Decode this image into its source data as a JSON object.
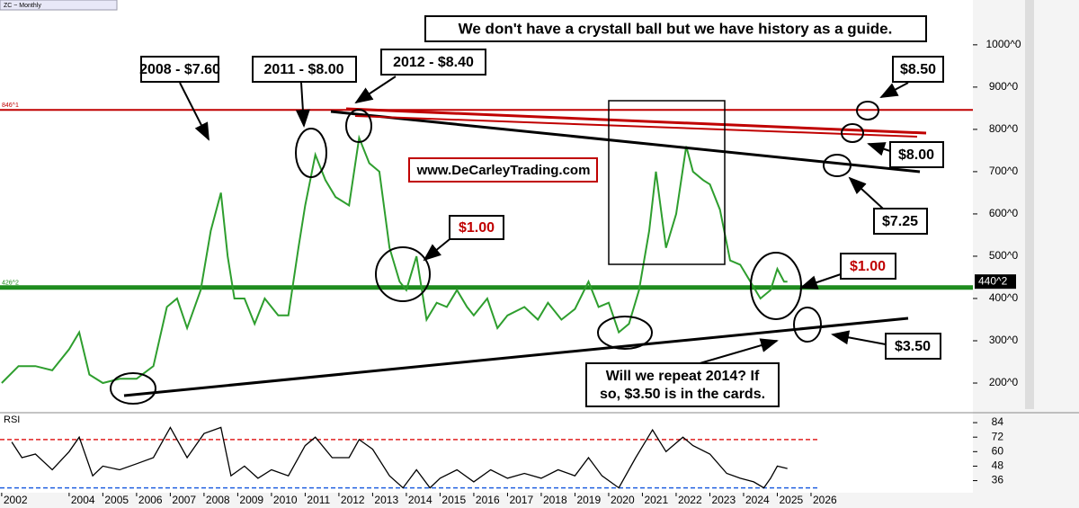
{
  "chart_data": [
    {
      "type": "line",
      "title": "ZC ~ Monthly",
      "x": [
        2002.0,
        2002.5,
        2003.0,
        2003.5,
        2004.0,
        2004.3,
        2004.6,
        2005.0,
        2005.5,
        2006.0,
        2006.5,
        2006.9,
        2007.2,
        2007.5,
        2007.9,
        2008.2,
        2008.5,
        2008.7,
        2008.9,
        2009.2,
        2009.5,
        2009.8,
        2010.2,
        2010.5,
        2010.8,
        2011.0,
        2011.3,
        2011.6,
        2011.9,
        2012.3,
        2012.6,
        2012.9,
        2013.2,
        2013.5,
        2013.8,
        2014.0,
        2014.3,
        2014.6,
        2014.9,
        2015.2,
        2015.5,
        2015.8,
        2016.0,
        2016.4,
        2016.7,
        2017.0,
        2017.5,
        2017.9,
        2018.2,
        2018.6,
        2019.0,
        2019.4,
        2019.7,
        2020.0,
        2020.3,
        2020.6,
        2020.9,
        2021.2,
        2021.4,
        2021.7,
        2022.0,
        2022.3,
        2022.5,
        2022.8,
        2023.0,
        2023.3,
        2023.6,
        2023.9,
        2024.2,
        2024.5,
        2024.8,
        2025.0,
        2025.2,
        2025.3
      ],
      "series": [
        {
          "color": "#2e9e2e",
          "values": [
            200,
            240,
            240,
            230,
            280,
            320,
            220,
            200,
            210,
            210,
            240,
            380,
            400,
            330,
            420,
            560,
            650,
            500,
            400,
            400,
            340,
            400,
            360,
            360,
            520,
            620,
            740,
            680,
            640,
            620,
            780,
            720,
            700,
            520,
            440,
            420,
            500,
            350,
            390,
            380,
            420,
            380,
            360,
            400,
            330,
            360,
            380,
            350,
            390,
            350,
            375,
            440,
            380,
            390,
            320,
            340,
            420,
            560,
            700,
            520,
            600,
            760,
            700,
            680,
            670,
            610,
            490,
            480,
            440,
            400,
            420,
            470,
            440,
            440
          ]
        }
      ],
      "ylim": [
        132,
        1106
      ],
      "yticks": [
        {
          "value": 200,
          "label": "200^0"
        },
        {
          "value": 300,
          "label": "300^0"
        },
        {
          "value": 400,
          "label": "400^0"
        },
        {
          "value": 500,
          "label": "500^0"
        },
        {
          "value": 600,
          "label": "600^0"
        },
        {
          "value": 700,
          "label": "700^0"
        },
        {
          "value": 800,
          "label": "800^0"
        },
        {
          "value": 900,
          "label": "900^0"
        },
        {
          "value": 1000,
          "label": "1000^0"
        }
      ],
      "reference_lines": [
        {
          "value": 846,
          "label": "846^1",
          "color": "#c00000"
        },
        {
          "value": 426,
          "label": "426^2",
          "color": "#1e8c1e"
        }
      ],
      "last_price": {
        "value": 440,
        "label": "440^2"
      }
    },
    {
      "type": "line",
      "title": "RSI",
      "x": [
        2002.3,
        2002.6,
        2003.0,
        2003.5,
        2004.0,
        2004.3,
        2004.7,
        2005.0,
        2005.5,
        2006.0,
        2006.5,
        2007.0,
        2007.5,
        2008.0,
        2008.5,
        2008.8,
        2009.2,
        2009.6,
        2010.0,
        2010.5,
        2011.0,
        2011.3,
        2011.8,
        2012.3,
        2012.6,
        2013.0,
        2013.5,
        2013.9,
        2014.3,
        2014.7,
        2015.0,
        2015.5,
        2016.0,
        2016.5,
        2017.0,
        2017.5,
        2018.0,
        2018.5,
        2019.0,
        2019.4,
        2019.8,
        2020.3,
        2020.8,
        2021.3,
        2021.7,
        2022.2,
        2022.5,
        2023.0,
        2023.5,
        2023.9,
        2024.3,
        2024.6,
        2024.8,
        2025.0,
        2025.3
      ],
      "series": [
        {
          "color": "#000000",
          "values": [
            68,
            55,
            58,
            45,
            60,
            72,
            40,
            48,
            45,
            50,
            55,
            80,
            55,
            75,
            80,
            40,
            48,
            38,
            45,
            40,
            65,
            72,
            55,
            55,
            70,
            62,
            40,
            30,
            45,
            30,
            38,
            45,
            35,
            45,
            38,
            42,
            38,
            45,
            40,
            55,
            40,
            30,
            55,
            78,
            60,
            72,
            65,
            58,
            42,
            38,
            35,
            30,
            38,
            48,
            46
          ]
        }
      ],
      "ylim": [
        26,
        90
      ],
      "yticks": [
        36,
        48,
        60,
        72,
        84
      ],
      "levels": [
        {
          "value": 70,
          "color": "#e02020"
        },
        {
          "value": 30,
          "color": "#2060e0"
        }
      ],
      "xlim": [
        2001.95,
        2030.8
      ],
      "xticks": [
        2002,
        2004,
        2005,
        2006,
        2007,
        2008,
        2009,
        2010,
        2011,
        2012,
        2013,
        2014,
        2015,
        2016,
        2017,
        2018,
        2019,
        2020,
        2021,
        2022,
        2023,
        2024,
        2025,
        2026
      ]
    }
  ],
  "annotations": {
    "headline": "We don't have a crystall ball but we have history as a guide.",
    "a2008": "2008 - $7.60",
    "a2011": "2011 - $8.00",
    "a2012": "2012 - $8.40",
    "site": "www.DeCarleyTrading.com",
    "one_a": "$1.00",
    "one_b": "$1.00",
    "p850": "$8.50",
    "p800": "$8.00",
    "p725": "$7.25",
    "p350": "$3.50",
    "repeat": [
      "Will we repeat 2014? If",
      "so, $3.50 is in the cards."
    ]
  }
}
